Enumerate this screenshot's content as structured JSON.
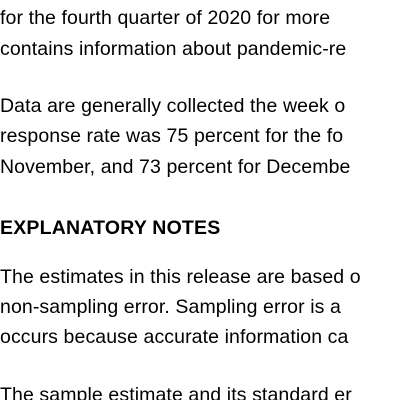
{
  "document": {
    "paragraph_1": [
      "for the fourth quarter of 2020 for more",
      "contains information about pandemic-re"
    ],
    "paragraph_2": [
      "Data are generally collected the week o",
      "response rate was 75 percent for the fo",
      "November, and 73 percent for Decembe"
    ],
    "heading": "EXPLANATORY NOTES",
    "paragraph_3": [
      "The estimates in this release are based o",
      "non-sampling error. Sampling error is a",
      "occurs because accurate information ca"
    ],
    "paragraph_4": [
      "The sample estimate and its standard er"
    ]
  }
}
